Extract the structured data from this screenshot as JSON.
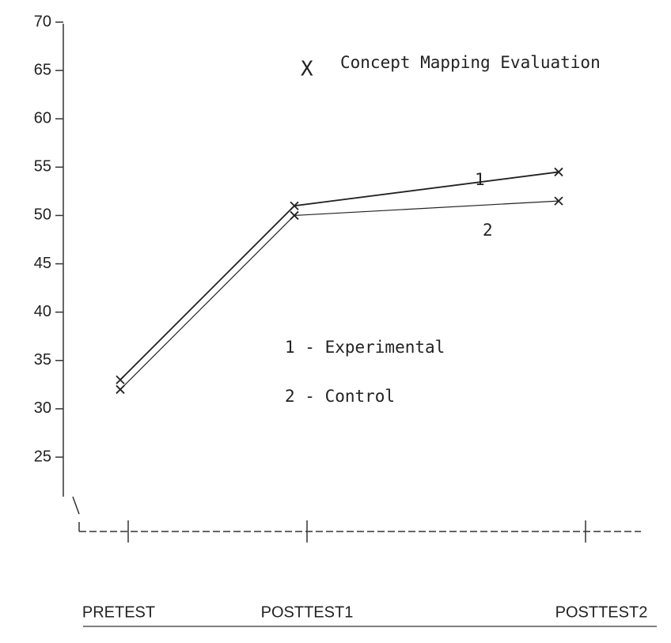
{
  "chart_data": {
    "type": "line",
    "title": "Concept Mapping Evaluation",
    "title_marker": "X",
    "categories": [
      "PRETEST",
      "POSTTEST1",
      "POSTTEST2"
    ],
    "series": [
      {
        "name": "1 - Experimental",
        "line_label": "1",
        "color": "#222",
        "values": [
          33,
          51,
          54.5
        ]
      },
      {
        "name": "2 - Control",
        "line_label": "2",
        "color": "#222",
        "values": [
          32,
          50,
          51.5
        ]
      }
    ],
    "ylim": [
      25,
      70
    ],
    "yticks": [
      25,
      30,
      35,
      40,
      45,
      50,
      55,
      60,
      65,
      70
    ]
  }
}
